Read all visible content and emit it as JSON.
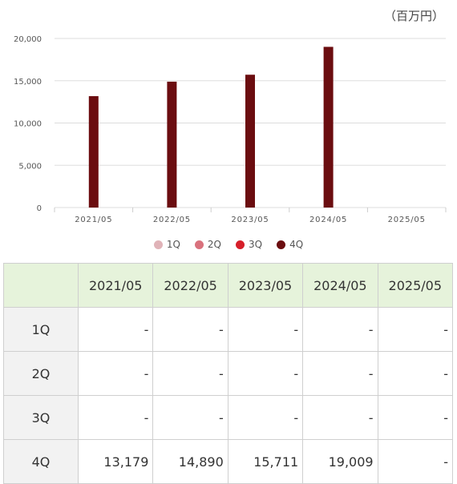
{
  "unit_label": "（百万円）",
  "colors": {
    "1Q": "#e0b3b8",
    "2Q": "#d9727d",
    "3Q": "#d61f2a",
    "4Q": "#6b0d10"
  },
  "chart_data": {
    "type": "bar",
    "categories": [
      "2021/05",
      "2022/05",
      "2023/05",
      "2024/05",
      "2025/05"
    ],
    "series": [
      {
        "name": "1Q",
        "values": [
          null,
          null,
          null,
          null,
          null
        ]
      },
      {
        "name": "2Q",
        "values": [
          null,
          null,
          null,
          null,
          null
        ]
      },
      {
        "name": "3Q",
        "values": [
          null,
          null,
          null,
          null,
          null
        ]
      },
      {
        "name": "4Q",
        "values": [
          13179,
          14890,
          15711,
          19009,
          null
        ]
      }
    ],
    "yticks": [
      "0",
      "5,000",
      "10,000",
      "15,000",
      "20,000"
    ],
    "ylim": [
      0,
      20000
    ],
    "grid": true,
    "legend": "bottom"
  },
  "legend": [
    {
      "label": "1Q",
      "color": "#e0b3b8"
    },
    {
      "label": "2Q",
      "color": "#d9727d"
    },
    {
      "label": "3Q",
      "color": "#d61f2a"
    },
    {
      "label": "4Q",
      "color": "#6b0d10"
    }
  ],
  "table": {
    "headers": [
      "",
      "2021/05",
      "2022/05",
      "2023/05",
      "2024/05",
      "2025/05"
    ],
    "rows": [
      {
        "label": "1Q",
        "cells": [
          "-",
          "-",
          "-",
          "-",
          "-"
        ]
      },
      {
        "label": "2Q",
        "cells": [
          "-",
          "-",
          "-",
          "-",
          "-"
        ]
      },
      {
        "label": "3Q",
        "cells": [
          "-",
          "-",
          "-",
          "-",
          "-"
        ]
      },
      {
        "label": "4Q",
        "cells": [
          "13,179",
          "14,890",
          "15,711",
          "19,009",
          "-"
        ]
      }
    ]
  }
}
